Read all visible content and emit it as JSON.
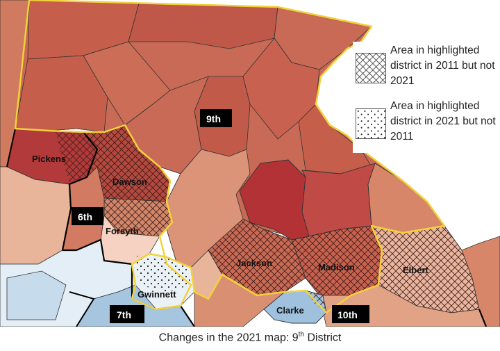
{
  "legend": {
    "items": [
      {
        "label": "Area in highlighted district in 2011 but not 2021",
        "pattern": "crosshatch"
      },
      {
        "label": "Area in highlighted district in 2021 but not 2011",
        "pattern": "dots"
      }
    ]
  },
  "districts": {
    "ninth": "9th",
    "sixth": "6th",
    "seventh": "7th",
    "tenth": "10th"
  },
  "counties": {
    "pickens": "Pickens",
    "dawson": "Dawson",
    "forsyth": "Forsyth",
    "gwinnett": "Gwinnett",
    "jackson": "Jackson",
    "madison": "Madison",
    "elbert": "Elbert",
    "clarke": "Clarke"
  },
  "caption": {
    "prefix": "Changes in the 2021 map: 9",
    "superscript": "th",
    "suffix": " District"
  },
  "colors": {
    "dark_red": "#b8413e",
    "mid_red": "#c8614f",
    "light_red": "#d88a6e",
    "salmon": "#e8b49a",
    "pale": "#f3d6c7",
    "light_blue": "#c9dced",
    "mid_blue": "#a6c5df",
    "district_border": "#f0d030"
  }
}
